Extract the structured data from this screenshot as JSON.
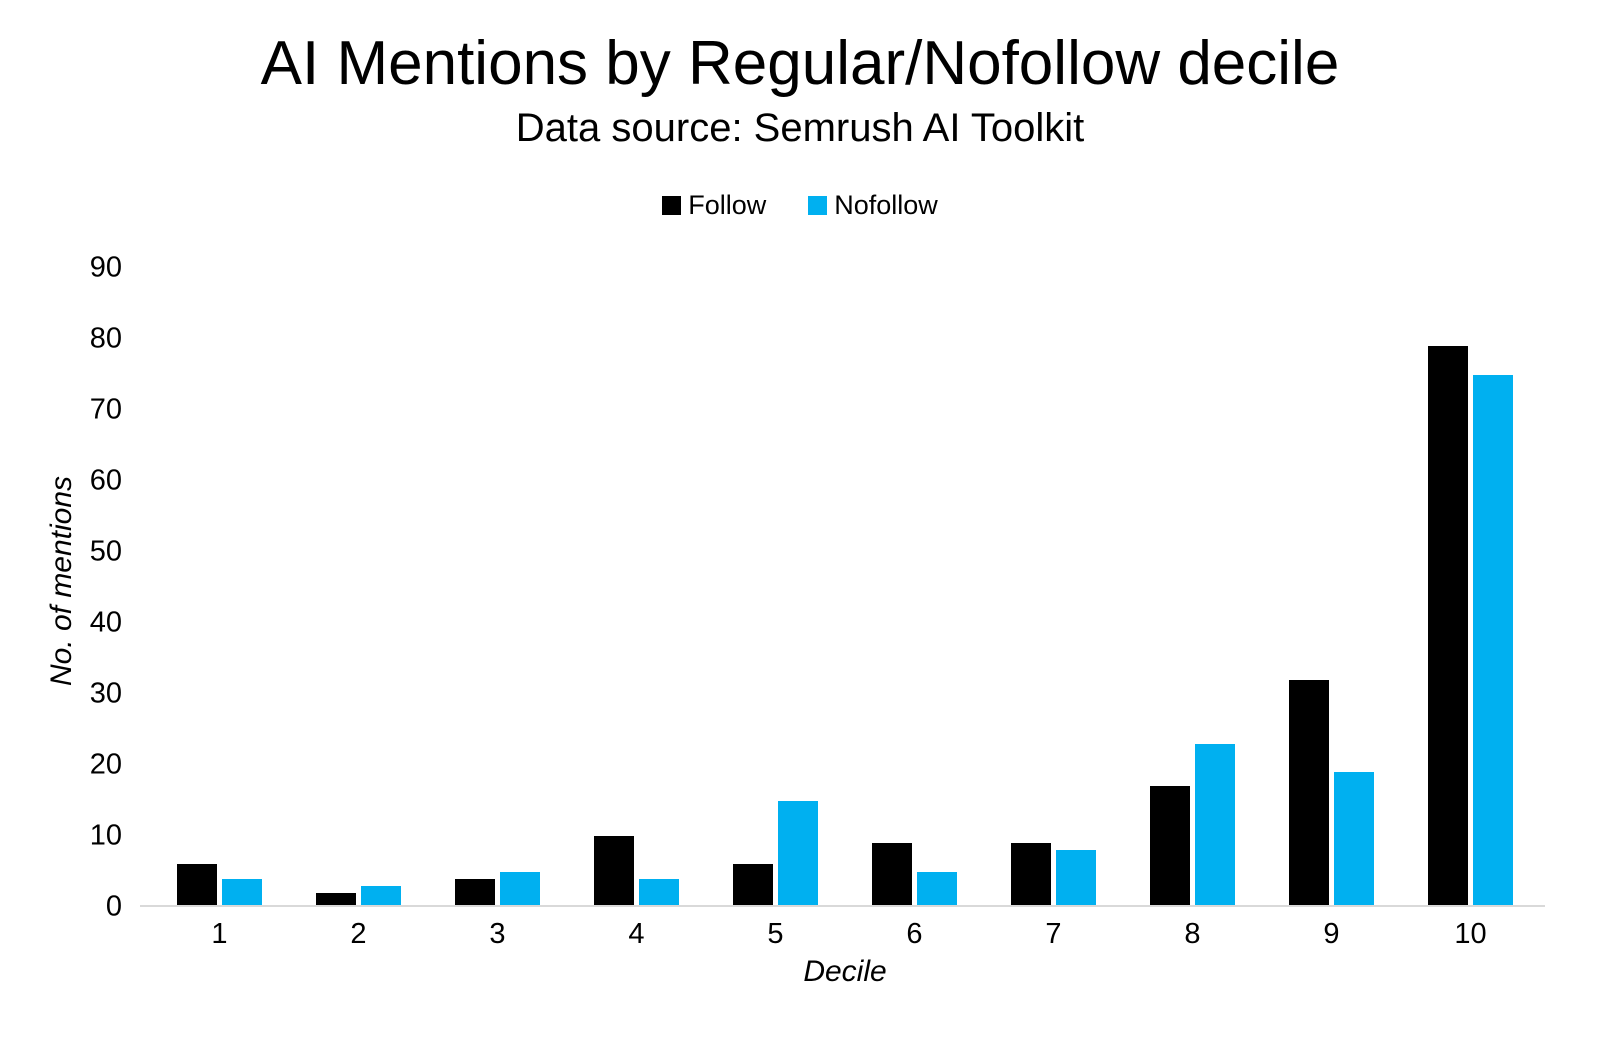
{
  "title": "AI Mentions by Regular/Nofollow decile",
  "subtitle": "Data source: Semrush AI Toolkit",
  "colors": {
    "follow": "#000000",
    "nofollow": "#00b0f0",
    "axis_line": "#d9d9d9",
    "text": "#000000",
    "background": "#ffffff"
  },
  "chart_data": {
    "type": "bar",
    "title": "AI Mentions by Regular/Nofollow decile",
    "subtitle": "Data source: Semrush AI Toolkit",
    "categories": [
      "1",
      "2",
      "3",
      "4",
      "5",
      "6",
      "7",
      "8",
      "9",
      "10"
    ],
    "series": [
      {
        "name": "Follow",
        "color": "#000000",
        "values": [
          6,
          2,
          4,
          10,
          6,
          9,
          9,
          17,
          32,
          79
        ]
      },
      {
        "name": "Nofollow",
        "color": "#00b0f0",
        "values": [
          4,
          3,
          5,
          4,
          15,
          5,
          8,
          23,
          19,
          75
        ]
      }
    ],
    "xlabel": "Decile",
    "ylabel": "No. of mentions",
    "ylim": [
      0,
      90
    ],
    "yticks": [
      0,
      10,
      20,
      30,
      40,
      50,
      60,
      70,
      80,
      90
    ],
    "grid": false,
    "legend_position": "top",
    "axis_line_color": "#d9d9d9"
  }
}
